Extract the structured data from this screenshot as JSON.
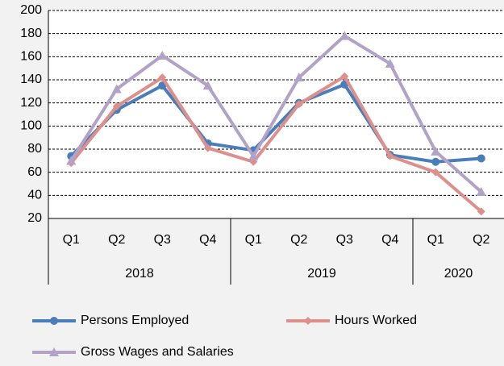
{
  "chart_data": {
    "type": "line",
    "categories": [
      "Q1",
      "Q2",
      "Q3",
      "Q4",
      "Q1",
      "Q2",
      "Q3",
      "Q4",
      "Q1",
      "Q2"
    ],
    "groups": [
      {
        "label": "2018",
        "span": 4
      },
      {
        "label": "2019",
        "span": 4
      },
      {
        "label": "2020",
        "span": 2
      }
    ],
    "series": [
      {
        "name": "Persons Employed",
        "color": "#4a7ebb",
        "marker": "circle",
        "values": [
          74,
          114,
          135,
          85,
          79,
          120,
          136,
          75,
          69,
          72
        ]
      },
      {
        "name": "Hours Worked",
        "color": "#dc8f8b",
        "marker": "diamond",
        "values": [
          68,
          117,
          142,
          81,
          69,
          119,
          143,
          74,
          60,
          26
        ]
      },
      {
        "name": "Gross Wages and Salaries",
        "color": "#b3a2c7",
        "marker": "triangle",
        "values": [
          70,
          132,
          161,
          135,
          74,
          142,
          178,
          154,
          78,
          43
        ]
      }
    ],
    "ylim": [
      20,
      200
    ],
    "yticks": [
      20,
      40,
      60,
      80,
      100,
      120,
      140,
      160,
      180,
      200
    ],
    "grid": true
  }
}
